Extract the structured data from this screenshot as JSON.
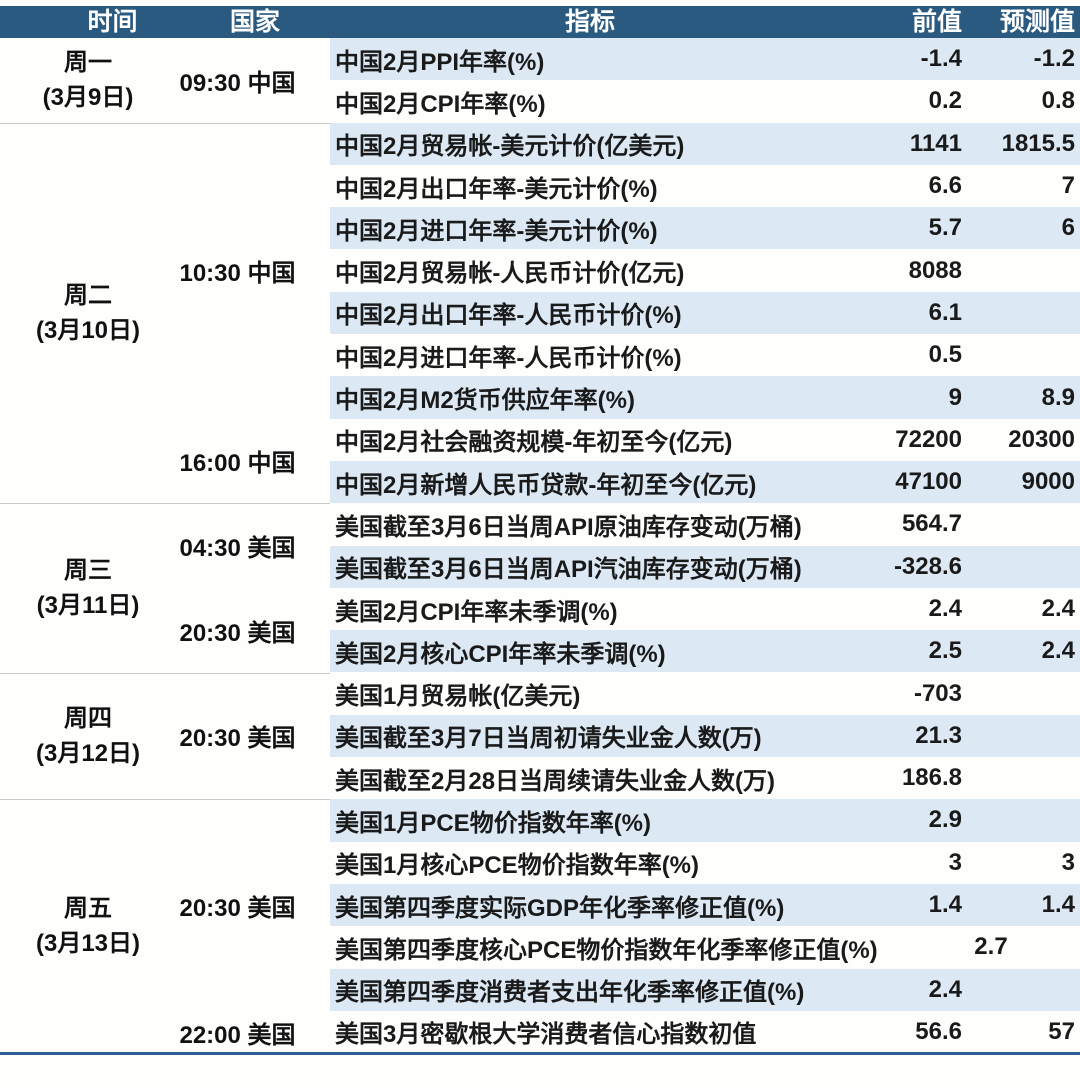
{
  "meta": {
    "title": "weekly-economic-calendar",
    "colors": {
      "header_bg": "#2b5a80",
      "header_text": "#ffffff",
      "row_band": "#dce9f5",
      "row_plain": "#ffffff",
      "body_text": "#1a1a1a",
      "group_separator": "#c9c9c9",
      "bottom_rule": "#2a5f95"
    }
  },
  "table": {
    "headers": [
      "时间",
      "国家",
      "指标",
      "前值",
      "预测值"
    ],
    "day_groups": [
      {
        "day": "周一",
        "date": "(3月9日)",
        "time_groups": [
          {
            "time": "09:30",
            "country": "中国",
            "rows": [
              {
                "indicator": "中国2月PPI年率(%)",
                "prev": "-1.4",
                "forecast": "-1.2"
              },
              {
                "indicator": "中国2月CPI年率(%)",
                "prev": "0.2",
                "forecast": "0.8"
              }
            ]
          }
        ]
      },
      {
        "day": "周二",
        "date": "(3月10日)",
        "time_groups": [
          {
            "time": "10:30",
            "country": "中国",
            "rows": [
              {
                "indicator": "中国2月贸易帐-美元计价(亿美元)",
                "prev": "1141",
                "forecast": "1815.5"
              },
              {
                "indicator": "中国2月出口年率-美元计价(%)",
                "prev": "6.6",
                "forecast": "7"
              },
              {
                "indicator": "中国2月进口年率-美元计价(%)",
                "prev": "5.7",
                "forecast": "6"
              },
              {
                "indicator": "中国2月贸易帐-人民币计价(亿元)",
                "prev": "8088",
                "forecast": ""
              },
              {
                "indicator": "中国2月出口年率-人民币计价(%)",
                "prev": "6.1",
                "forecast": ""
              },
              {
                "indicator": "中国2月进口年率-人民币计价(%)",
                "prev": "0.5",
                "forecast": ""
              },
              {
                "indicator": "中国2月M2货币供应年率(%)",
                "prev": "9",
                "forecast": "8.9"
              }
            ]
          },
          {
            "time": "16:00",
            "country": "中国",
            "rows": [
              {
                "indicator": "中国2月社会融资规模-年初至今(亿元)",
                "prev": "72200",
                "forecast": "20300"
              },
              {
                "indicator": "中国2月新增人民币贷款-年初至今(亿元)",
                "prev": "47100",
                "forecast": "9000"
              }
            ]
          }
        ]
      },
      {
        "day": "周三",
        "date": "(3月11日)",
        "time_groups": [
          {
            "time": "04:30",
            "country": "美国",
            "rows": [
              {
                "indicator": "美国截至3月6日当周API原油库存变动(万桶)",
                "prev": "564.7",
                "forecast": ""
              },
              {
                "indicator": "美国截至3月6日当周API汽油库存变动(万桶)",
                "prev": "-328.6",
                "forecast": ""
              }
            ]
          },
          {
            "time": "20:30",
            "country": "美国",
            "rows": [
              {
                "indicator": "美国2月CPI年率未季调(%)",
                "prev": "2.4",
                "forecast": "2.4"
              },
              {
                "indicator": "美国2月核心CPI年率未季调(%)",
                "prev": "2.5",
                "forecast": "2.4"
              }
            ]
          }
        ]
      },
      {
        "day": "周四",
        "date": "(3月12日)",
        "time_groups": [
          {
            "time": "20:30",
            "country": "美国",
            "rows": [
              {
                "indicator": "美国1月贸易帐(亿美元)",
                "prev": "-703",
                "forecast": ""
              },
              {
                "indicator": "美国截至3月7日当周初请失业金人数(万)",
                "prev": "21.3",
                "forecast": ""
              },
              {
                "indicator": "美国截至2月28日当周续请失业金人数(万)",
                "prev": "186.8",
                "forecast": ""
              }
            ]
          }
        ]
      },
      {
        "day": "周五",
        "date": "(3月13日)",
        "time_groups": [
          {
            "time": "20:30",
            "country": "美国",
            "rows": [
              {
                "indicator": "美国1月PCE物价指数年率(%)",
                "prev": "2.9",
                "forecast": ""
              },
              {
                "indicator": "美国1月核心PCE物价指数年率(%)",
                "prev": "3",
                "forecast": "3"
              },
              {
                "indicator": "美国第四季度实际GDP年化季率修正值(%)",
                "prev": "1.4",
                "forecast": "1.4"
              },
              {
                "indicator": "美国第四季度核心PCE物价指数年化季率修正值(%)",
                "prev": "2.7",
                "forecast": ""
              },
              {
                "indicator": "美国第四季度消费者支出年化季率修正值(%)",
                "prev": "2.4",
                "forecast": ""
              }
            ]
          },
          {
            "time": "22:00",
            "country": "美国",
            "rows": [
              {
                "indicator": "美国3月密歇根大学消费者信心指数初值",
                "prev": "56.6",
                "forecast": "57"
              }
            ]
          }
        ]
      }
    ]
  },
  "chart_data": {
    "type": "table",
    "title": "",
    "columns": [
      "时间",
      "国家",
      "指标",
      "前值",
      "预测值"
    ],
    "rows": [
      [
        "周一(3月9日) 09:30",
        "中国",
        "中国2月PPI年率(%)",
        "-1.4",
        "-1.2"
      ],
      [
        "周一(3月9日) 09:30",
        "中国",
        "中国2月CPI年率(%)",
        "0.2",
        "0.8"
      ],
      [
        "周二(3月10日) 10:30",
        "中国",
        "中国2月贸易帐-美元计价(亿美元)",
        "1141",
        "1815.5"
      ],
      [
        "周二(3月10日) 10:30",
        "中国",
        "中国2月出口年率-美元计价(%)",
        "6.6",
        "7"
      ],
      [
        "周二(3月10日) 10:30",
        "中国",
        "中国2月进口年率-美元计价(%)",
        "5.7",
        "6"
      ],
      [
        "周二(3月10日) 10:30",
        "中国",
        "中国2月贸易帐-人民币计价(亿元)",
        "8088",
        ""
      ],
      [
        "周二(3月10日) 10:30",
        "中国",
        "中国2月出口年率-人民币计价(%)",
        "6.1",
        ""
      ],
      [
        "周二(3月10日) 10:30",
        "中国",
        "中国2月进口年率-人民币计价(%)",
        "0.5",
        ""
      ],
      [
        "周二(3月10日) 10:30",
        "中国",
        "中国2月M2货币供应年率(%)",
        "9",
        "8.9"
      ],
      [
        "周二(3月10日) 16:00",
        "中国",
        "中国2月社会融资规模-年初至今(亿元)",
        "72200",
        "20300"
      ],
      [
        "周二(3月10日) 16:00",
        "中国",
        "中国2月新增人民币贷款-年初至今(亿元)",
        "47100",
        "9000"
      ],
      [
        "周三(3月11日) 04:30",
        "美国",
        "美国截至3月6日当周API原油库存变动(万桶)",
        "564.7",
        ""
      ],
      [
        "周三(3月11日) 04:30",
        "美国",
        "美国截至3月6日当周API汽油库存变动(万桶)",
        "-328.6",
        ""
      ],
      [
        "周三(3月11日) 20:30",
        "美国",
        "美国2月CPI年率未季调(%)",
        "2.4",
        "2.4"
      ],
      [
        "周三(3月11日) 20:30",
        "美国",
        "美国2月核心CPI年率未季调(%)",
        "2.5",
        "2.4"
      ],
      [
        "周四(3月12日) 20:30",
        "美国",
        "美国1月贸易帐(亿美元)",
        "-703",
        ""
      ],
      [
        "周四(3月12日) 20:30",
        "美国",
        "美国截至3月7日当周初请失业金人数(万)",
        "21.3",
        ""
      ],
      [
        "周四(3月12日) 20:30",
        "美国",
        "美国截至2月28日当周续请失业金人数(万)",
        "186.8",
        ""
      ],
      [
        "周五(3月13日) 20:30",
        "美国",
        "美国1月PCE物价指数年率(%)",
        "2.9",
        ""
      ],
      [
        "周五(3月13日) 20:30",
        "美国",
        "美国1月核心PCE物价指数年率(%)",
        "3",
        "3"
      ],
      [
        "周五(3月13日) 20:30",
        "美国",
        "美国第四季度实际GDP年化季率修正值(%)",
        "1.4",
        "1.4"
      ],
      [
        "周五(3月13日) 20:30",
        "美国",
        "美国第四季度核心PCE物价指数年化季率修正值(%)",
        "2.7",
        ""
      ],
      [
        "周五(3月13日) 20:30",
        "美国",
        "美国第四季度消费者支出年化季率修正值(%)",
        "2.4",
        ""
      ],
      [
        "周五(3月13日) 22:00",
        "美国",
        "美国3月密歇根大学消费者信心指数初值",
        "56.6",
        "57"
      ]
    ]
  }
}
